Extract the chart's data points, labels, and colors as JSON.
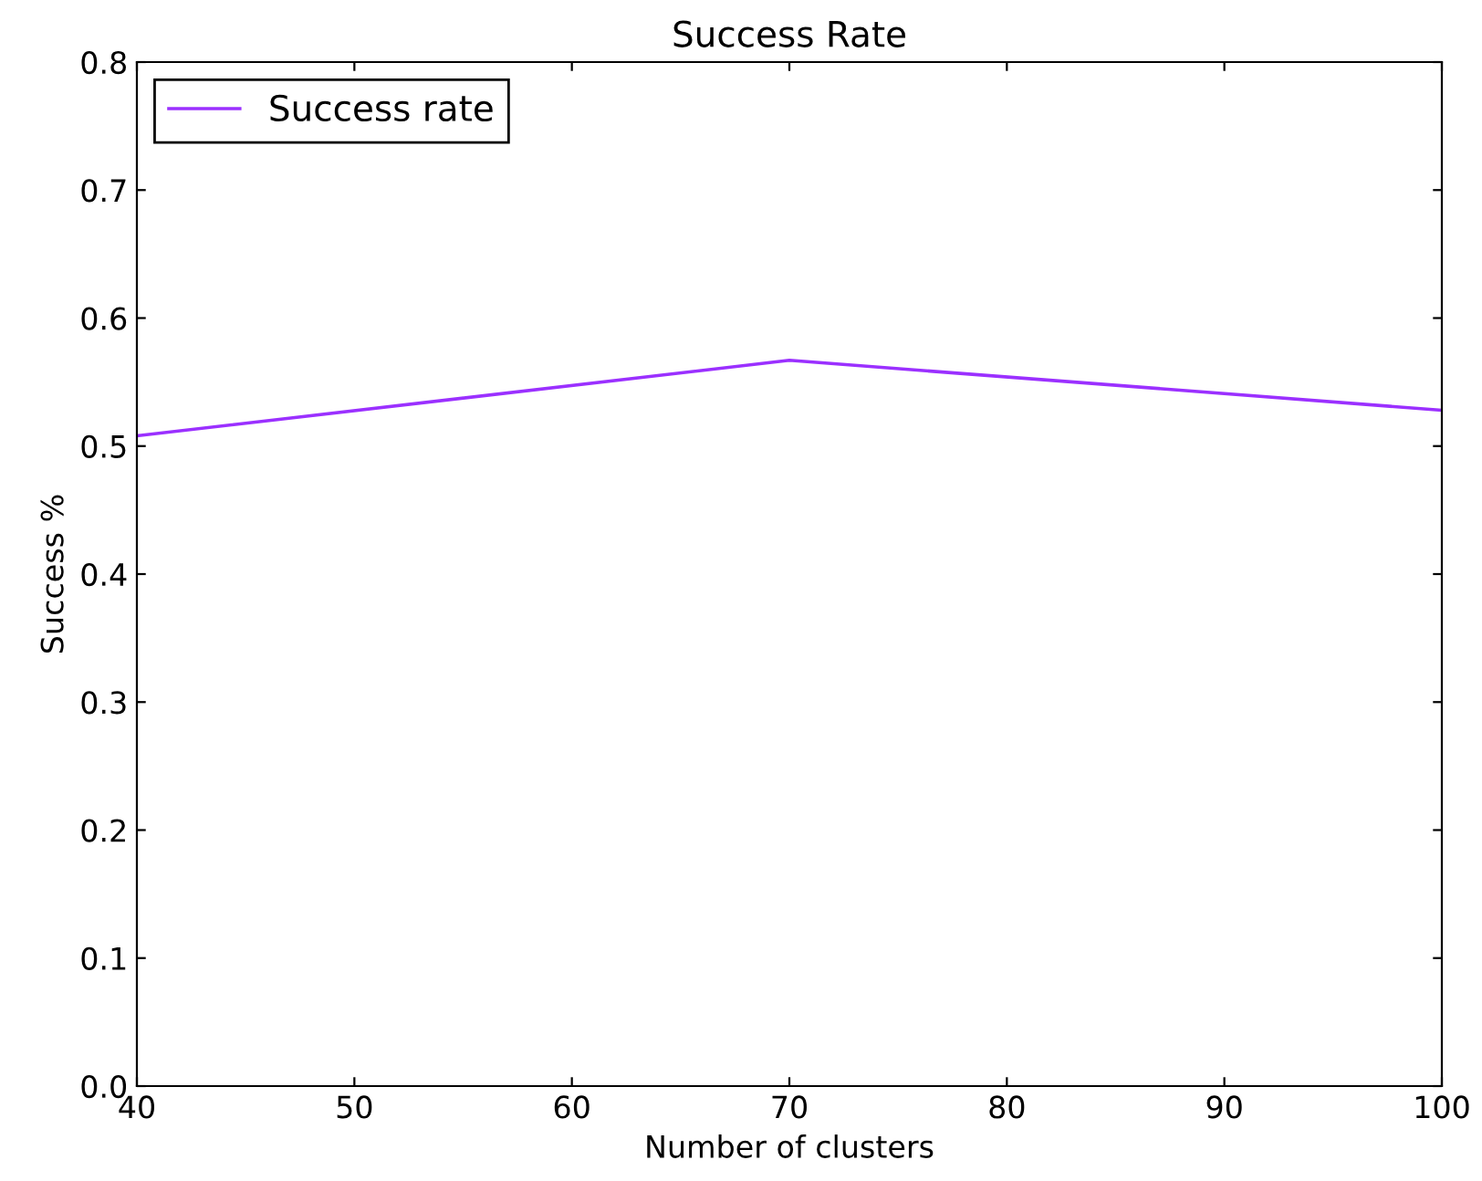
{
  "chart_data": {
    "type": "line",
    "title": "Success Rate",
    "xlabel": "Number of clusters",
    "ylabel": "Success %",
    "x": [
      40,
      70,
      100
    ],
    "series": [
      {
        "name": "Success rate",
        "color": "#9b30ff",
        "values": [
          0.508,
          0.567,
          0.528
        ]
      }
    ],
    "xlim": [
      40,
      100
    ],
    "xticks": [
      40,
      50,
      60,
      70,
      80,
      90,
      100
    ],
    "ylim": [
      0,
      0.8
    ],
    "yticks": [
      {
        "value": 0,
        "label": "0.0"
      },
      0.1,
      0.2,
      0.3,
      0.4,
      0.5,
      0.6,
      0.7,
      0.8
    ],
    "legend": "top left",
    "grid": false,
    "marker": "none",
    "line_style": "solid"
  }
}
